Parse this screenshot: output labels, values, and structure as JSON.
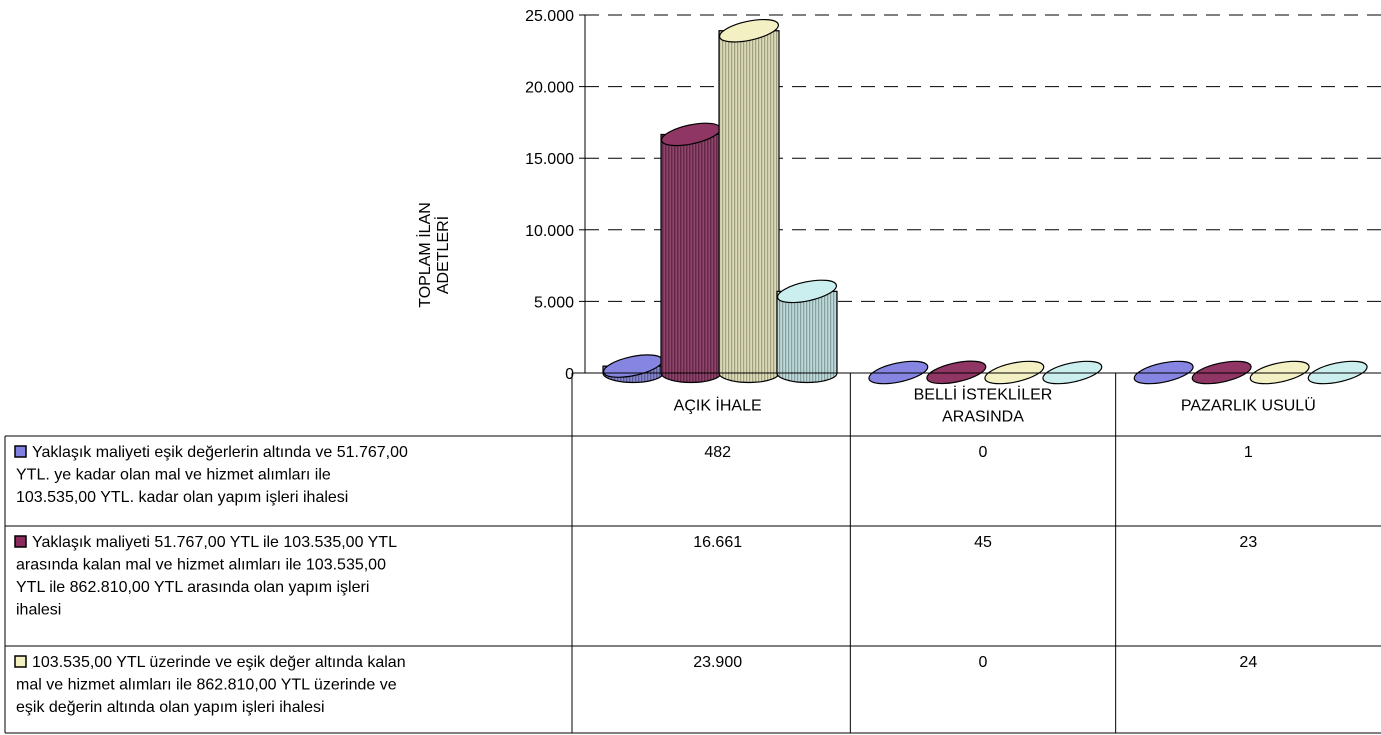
{
  "chart_data": {
    "type": "bar",
    "style": "3d-cylinder",
    "ylabel_lines": [
      "TOPLAM İLAN",
      "ADETLERİ"
    ],
    "ylim": [
      0,
      25000
    ],
    "yticks": [
      "0",
      "5.000",
      "10.000",
      "15.000",
      "20.000",
      "25.000"
    ],
    "ytick_values": [
      0,
      5000,
      10000,
      15000,
      20000,
      25000
    ],
    "grid": true,
    "categories": [
      {
        "lines": [
          "AÇIK İHALE"
        ]
      },
      {
        "lines": [
          "BELLİ   İSTEKLİLER",
          "ARASINDA"
        ]
      },
      {
        "lines": [
          "PAZARLIK USULÜ"
        ]
      }
    ],
    "series": [
      {
        "name_lines": [
          "Yaklaşık maliyeti eşik değerlerin altında ve 51.767,00",
          "YTL. ye kadar olan mal ve hizmet alımları ile",
          "103.535,00  YTL. kadar olan yapım işleri ihalesi"
        ],
        "values": [
          482,
          0,
          1
        ],
        "labels": [
          "482",
          "0",
          "1"
        ],
        "color": "#8080e0"
      },
      {
        "name_lines": [
          "Yaklaşık maliyeti 51.767,00  YTL ile 103.535,00  YTL",
          "arasında kalan  mal ve hizmet alımları ile 103.535,00",
          "YTL ile 862.810,00 YTL arasında olan yapım  işleri",
          "ihalesi"
        ],
        "values": [
          16661,
          45,
          23
        ],
        "labels": [
          "16.661",
          "45",
          "23"
        ],
        "color": "#8a2b5c"
      },
      {
        "name_lines": [
          "103.535,00  YTL üzerinde ve  eşik değer altında kalan",
          "mal ve hizmet alımları ile 862.810,00 YTL üzerinde  ve",
          "eşik değerin  altında olan yapım işleri ihalesi"
        ],
        "values": [
          23900,
          0,
          24
        ],
        "labels": [
          "23.900",
          "0",
          "24"
        ],
        "color": "#f2f0c0"
      },
      {
        "name": "",
        "values": [
          5700,
          0,
          0
        ],
        "color": "#c8eeee"
      }
    ]
  }
}
